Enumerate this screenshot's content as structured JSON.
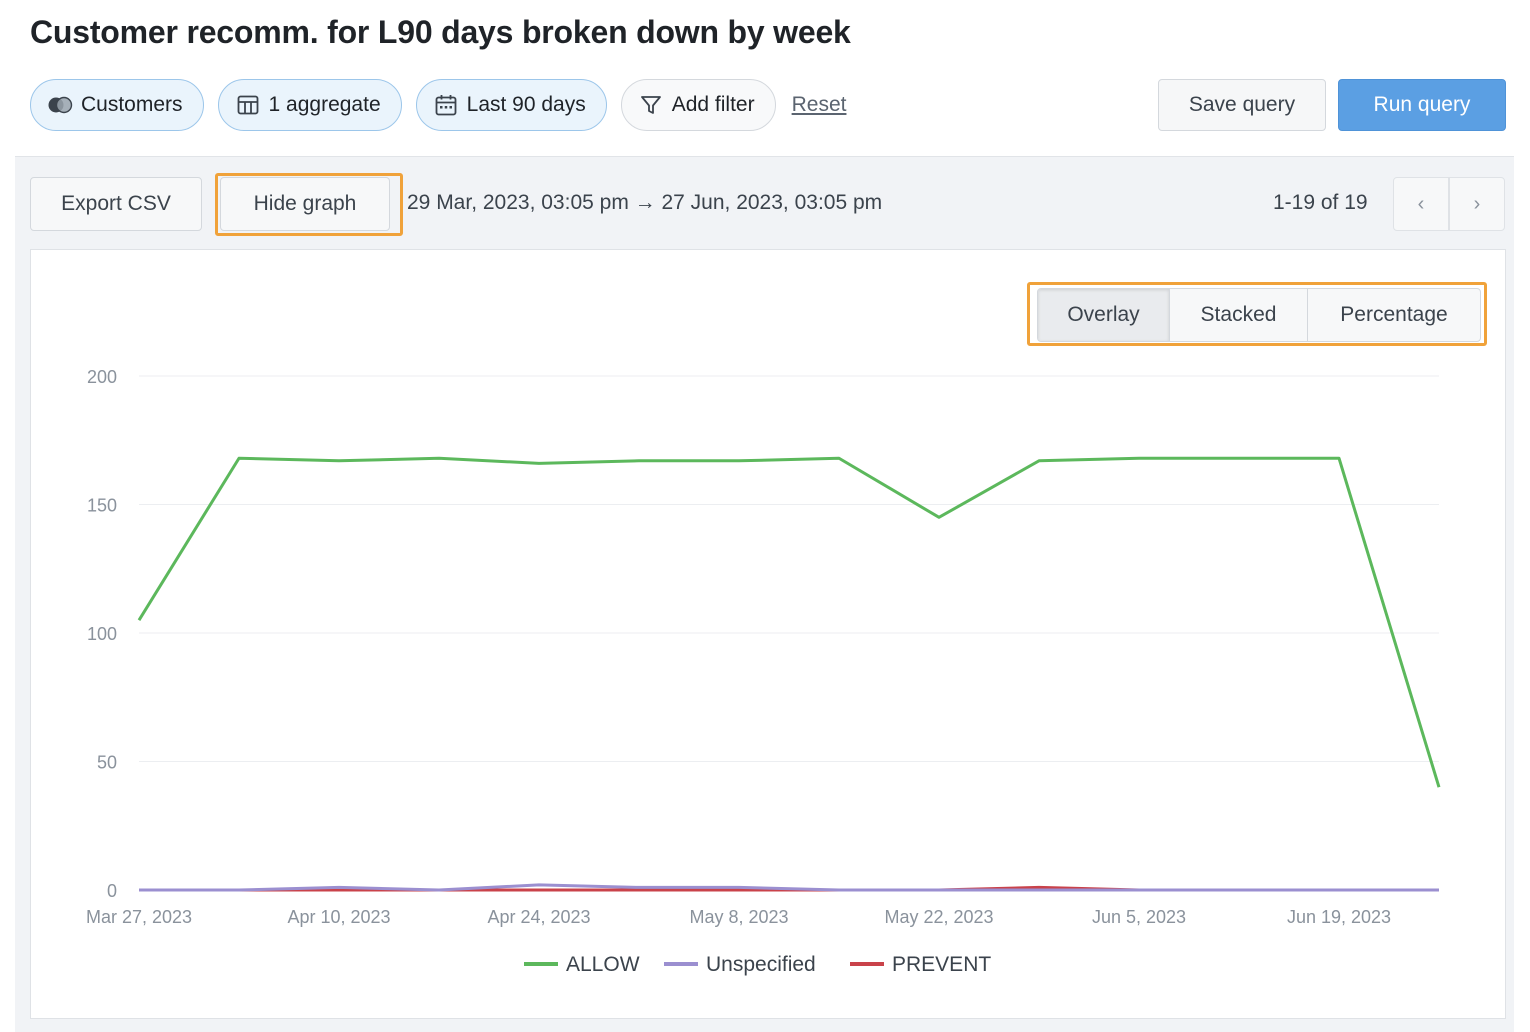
{
  "title": "Customer recomm. for L90 days broken down by week",
  "toolbar": {
    "source_label": "Customers",
    "aggregate_label": "1 aggregate",
    "range_label": "Last 90 days",
    "filter_label": "Add filter",
    "reset_label": "Reset",
    "save_label": "Save query",
    "run_label": "Run query"
  },
  "results": {
    "export_label": "Export CSV",
    "hide_graph_label": "Hide graph",
    "date_range": "29 Mar, 2023, 03:05 pm → 27 Jun, 2023, 03:05 pm",
    "pagination": "1-19 of 19",
    "prev_icon": "‹",
    "next_icon": "›"
  },
  "view_modes": [
    "Overlay",
    "Stacked",
    "Percentage"
  ],
  "active_view_mode": "Overlay",
  "chart_data": {
    "type": "line",
    "x_ticks": [
      "Mar 27, 2023",
      "Apr 10, 2023",
      "Apr 24, 2023",
      "May 8, 2023",
      "May 22, 2023",
      "Jun 5, 2023",
      "Jun 19, 2023"
    ],
    "x": [
      "2023-03-27",
      "2023-04-03",
      "2023-04-10",
      "2023-04-17",
      "2023-04-24",
      "2023-05-01",
      "2023-05-08",
      "2023-05-15",
      "2023-05-22",
      "2023-05-29",
      "2023-06-05",
      "2023-06-12",
      "2023-06-19",
      "2023-06-26"
    ],
    "ylim": [
      0,
      200
    ],
    "y_ticks": [
      0,
      50,
      100,
      150,
      200
    ],
    "grid": true,
    "legend_position": "bottom",
    "series": [
      {
        "name": "ALLOW",
        "color": "#5cb85c",
        "values": [
          105,
          168,
          167,
          168,
          166,
          167,
          167,
          168,
          145,
          167,
          168,
          168,
          168,
          40
        ]
      },
      {
        "name": "Unspecified",
        "color": "#9b8fd0",
        "values": [
          0,
          0,
          1,
          0,
          2,
          1,
          1,
          0,
          0,
          0,
          0,
          0,
          0,
          0
        ]
      },
      {
        "name": "PREVENT",
        "color": "#c9424a",
        "values": [
          0,
          0,
          0,
          0,
          0,
          0,
          0,
          0,
          0,
          1,
          0,
          0,
          0,
          0
        ]
      }
    ]
  }
}
